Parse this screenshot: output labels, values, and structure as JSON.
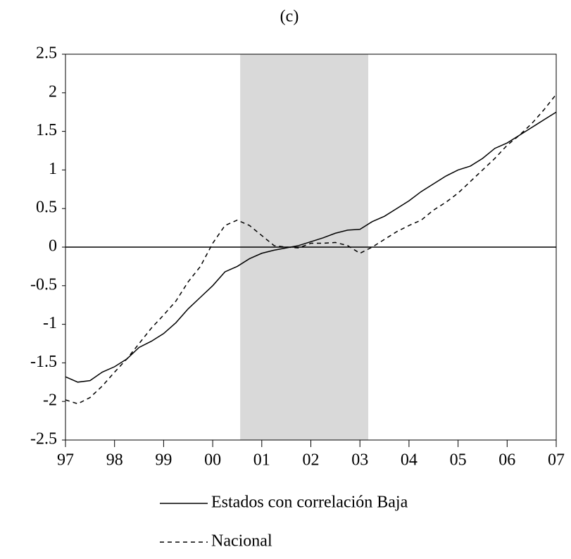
{
  "chart_data": {
    "type": "line",
    "title": "(c)",
    "x": [
      1997,
      1997.25,
      1997.5,
      1997.75,
      1998,
      1998.25,
      1998.5,
      1998.75,
      1999,
      1999.25,
      1999.5,
      1999.75,
      2000,
      2000.25,
      2000.5,
      2000.75,
      2001,
      2001.25,
      2001.5,
      2001.75,
      2002,
      2002.25,
      2002.5,
      2002.75,
      2003,
      2003.25,
      2003.5,
      2003.75,
      2004,
      2004.25,
      2004.5,
      2004.75,
      2005,
      2005.25,
      2005.5,
      2005.75,
      2006,
      2006.25,
      2006.5,
      2006.75,
      2007
    ],
    "series": [
      {
        "name": "Estados con correlación Baja",
        "color": "#000000",
        "dash": "none",
        "values": [
          -1.68,
          -1.75,
          -1.73,
          -1.62,
          -1.55,
          -1.45,
          -1.3,
          -1.22,
          -1.12,
          -0.98,
          -0.8,
          -0.65,
          -0.5,
          -0.32,
          -0.25,
          -0.15,
          -0.08,
          -0.04,
          -0.01,
          0.02,
          0.07,
          0.12,
          0.18,
          0.22,
          0.23,
          0.33,
          0.4,
          0.5,
          0.6,
          0.72,
          0.82,
          0.92,
          1.0,
          1.05,
          1.15,
          1.28,
          1.35,
          1.45,
          1.55,
          1.65,
          1.75
        ]
      },
      {
        "name": "Nacional",
        "color": "#000000",
        "dash": "6 5",
        "values": [
          -1.98,
          -2.03,
          -1.95,
          -1.8,
          -1.62,
          -1.45,
          -1.25,
          -1.05,
          -0.88,
          -0.7,
          -0.45,
          -0.25,
          0.05,
          0.28,
          0.35,
          0.28,
          0.15,
          0.02,
          0.0,
          -0.01,
          0.05,
          0.05,
          0.06,
          0.02,
          -0.08,
          0.0,
          0.1,
          0.2,
          0.28,
          0.35,
          0.48,
          0.58,
          0.7,
          0.85,
          1.0,
          1.15,
          1.32,
          1.45,
          1.6,
          1.78,
          1.98
        ]
      }
    ],
    "xlim": [
      1997,
      2007
    ],
    "xticks": [
      {
        "value": 1997,
        "label": "97"
      },
      {
        "value": 1998,
        "label": "98"
      },
      {
        "value": 1999,
        "label": "99"
      },
      {
        "value": 2000,
        "label": "00"
      },
      {
        "value": 2001,
        "label": "01"
      },
      {
        "value": 2002,
        "label": "02"
      },
      {
        "value": 2003,
        "label": "03"
      },
      {
        "value": 2004,
        "label": "04"
      },
      {
        "value": 2005,
        "label": "05"
      },
      {
        "value": 2006,
        "label": "06"
      },
      {
        "value": 2007,
        "label": "07"
      }
    ],
    "ylim": [
      -2.5,
      2.5
    ],
    "yticks": [
      -2.5,
      -2,
      -1.5,
      -1,
      -0.5,
      0,
      0.5,
      1,
      1.5,
      2,
      2.5
    ],
    "shaded": [
      2000.56,
      2003.17
    ],
    "shade_color": "#d9d9d9",
    "hline": 0,
    "legend": "bottom"
  }
}
